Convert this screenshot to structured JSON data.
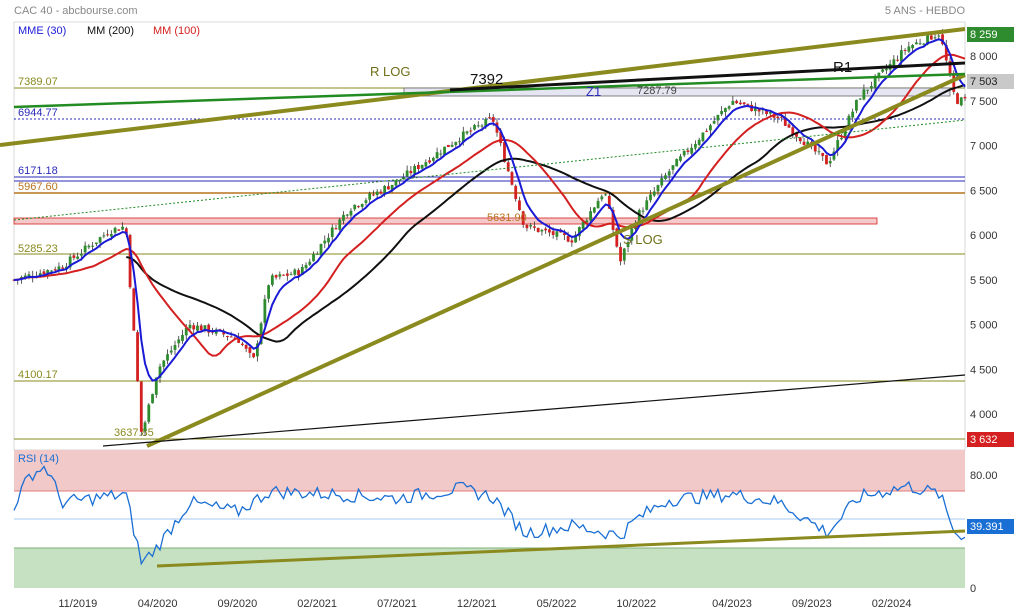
{
  "header": {
    "title": "CAC 40 - abcbourse.com",
    "period": "5 ANS - HEBDO",
    "legend": [
      {
        "label": "MME (30)",
        "color": "#1a1ad6"
      },
      {
        "label": "MM (200)",
        "color": "#111111"
      },
      {
        "label": "MM (100)",
        "color": "#d42020"
      }
    ]
  },
  "chart_data": [
    {
      "type": "candlestick",
      "ylim": [
        3600,
        8380
      ],
      "yticks": [
        4000,
        4500,
        5000,
        5500,
        6000,
        6500,
        7000,
        7500,
        8000
      ],
      "ytick_labels": [
        "4 000",
        "4 500",
        "5 000",
        "5 500",
        "6 000",
        "6 500",
        "7 000",
        "7 500",
        "8 000"
      ],
      "x_labels": [
        "11/2019",
        "04/2020",
        "09/2020",
        "02/2021",
        "07/2021",
        "12/2021",
        "05/2022",
        "10/2022",
        "04/2023",
        "09/2023",
        "02/2024"
      ],
      "price_path": [
        [
          "2019-07",
          5500
        ],
        [
          "2019-10",
          5650
        ],
        [
          "2020-01",
          6050
        ],
        [
          "2020-02",
          6100
        ],
        [
          "2020-03",
          3754
        ],
        [
          "2020-04",
          4500
        ],
        [
          "2020-06",
          5000
        ],
        [
          "2020-09",
          4850
        ],
        [
          "2020-10",
          4594
        ],
        [
          "2020-11",
          5500
        ],
        [
          "2021-01",
          5600
        ],
        [
          "2021-04",
          6300
        ],
        [
          "2021-07",
          6600
        ],
        [
          "2021-11",
          7100
        ],
        [
          "2022-01",
          7300
        ],
        [
          "2022-03",
          6100
        ],
        [
          "2022-06",
          5950
        ],
        [
          "2022-08",
          6500
        ],
        [
          "2022-09",
          5700
        ],
        [
          "2022-10",
          6200
        ],
        [
          "2022-12",
          6700
        ],
        [
          "2023-04",
          7500
        ],
        [
          "2023-07",
          7300
        ],
        [
          "2023-10",
          6800
        ],
        [
          "2023-12",
          7550
        ],
        [
          "2024-03",
          8100
        ],
        [
          "2024-05",
          8259
        ],
        [
          "2024-06",
          7503
        ]
      ],
      "last_close": "7 503",
      "ath": "8 259",
      "level_lines": [
        {
          "label": "7389.07",
          "value": 7389.07,
          "color": "#8a8a1f"
        },
        {
          "label": "6944.77",
          "value": 6944.77,
          "color": "#2b2bb8"
        },
        {
          "label": "6171.18",
          "value": 6171.18,
          "color": "#2b2bb8"
        },
        {
          "label": "5967.60",
          "value": 5967.6,
          "color": "#b8741f"
        },
        {
          "label": "5285.23",
          "value": 5285.23,
          "color": "#8a8a1f"
        },
        {
          "label": "4100.17",
          "value": 4100.17,
          "color": "#8a8a1f"
        },
        {
          "label": "3637.85",
          "value": 3637.85,
          "color": "#8a8a1f"
        }
      ],
      "box_levels": [
        {
          "label": "7392",
          "value": 7392
        },
        {
          "label": "5631.90",
          "value": 5631.9
        }
      ],
      "annotations": [
        "R LOG",
        "7392",
        "Z1",
        "7287.79",
        "R1",
        "5631.90",
        "S LOG",
        "3 632"
      ],
      "series": [
        {
          "name": "MME (30)",
          "color": "#1a1ad6"
        },
        {
          "name": "MM (100)",
          "color": "#d42020"
        },
        {
          "name": "MM (200)",
          "color": "#111111"
        }
      ]
    },
    {
      "type": "line",
      "name": "RSI (14)",
      "ylim": [
        0,
        100
      ],
      "overbought": 70,
      "oversold": 30,
      "yticks": [
        "80.00",
        "0"
      ],
      "last_value": "39.391",
      "color": "#1a6fd4",
      "path": [
        [
          "2019-07",
          60
        ],
        [
          "2019-08",
          82
        ],
        [
          "2019-09",
          88
        ],
        [
          "2019-10",
          62
        ],
        [
          "2019-12",
          65
        ],
        [
          "2020-02",
          68
        ],
        [
          "2020-03",
          18
        ],
        [
          "2020-04",
          30
        ],
        [
          "2020-06",
          62
        ],
        [
          "2020-09",
          55
        ],
        [
          "2020-11",
          70
        ],
        [
          "2021-03",
          68
        ],
        [
          "2021-07",
          65
        ],
        [
          "2021-11",
          72
        ],
        [
          "2022-01",
          66
        ],
        [
          "2022-03",
          40
        ],
        [
          "2022-06",
          45
        ],
        [
          "2022-09",
          38
        ],
        [
          "2022-10",
          50
        ],
        [
          "2022-12",
          64
        ],
        [
          "2023-04",
          68
        ],
        [
          "2023-07",
          62
        ],
        [
          "2023-10",
          40
        ],
        [
          "2023-12",
          66
        ],
        [
          "2024-03",
          74
        ],
        [
          "2024-05",
          68
        ],
        [
          "2024-06",
          39
        ]
      ]
    }
  ]
}
